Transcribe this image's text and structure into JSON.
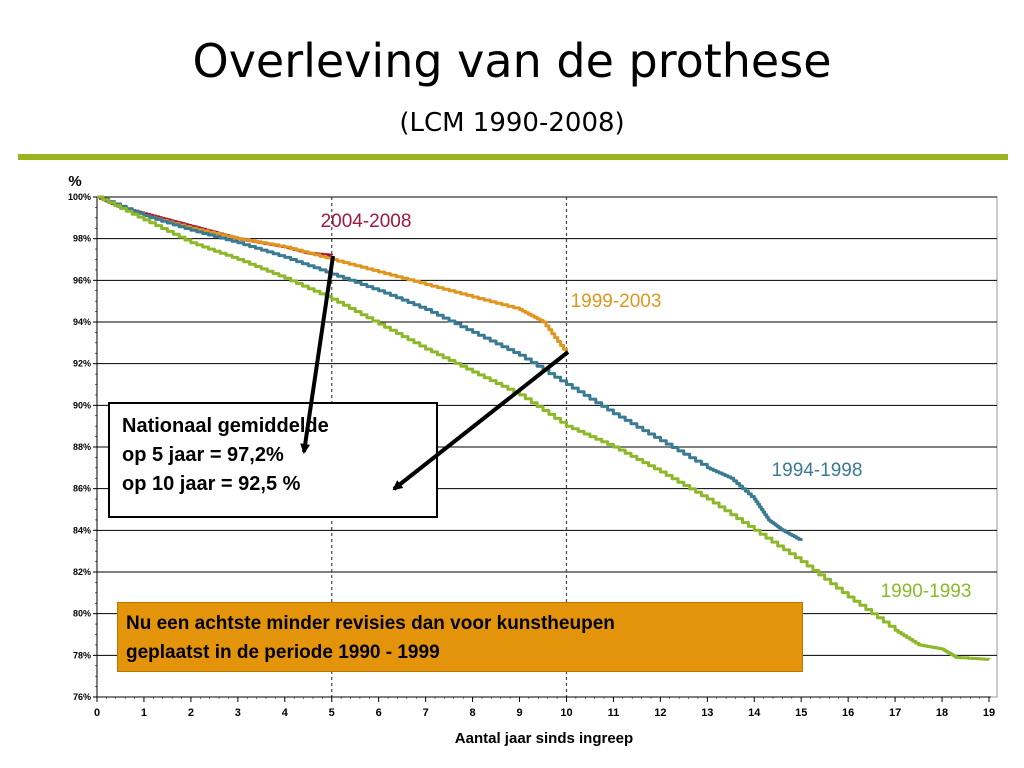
{
  "slide": {
    "title": "Overleving van de prothese",
    "subtitle": "(LCM 1990-2008)",
    "accent_color": "#9ab41e"
  },
  "annotation": {
    "line1": "Nationaal gemiddelde",
    "line2": "op 5 jaar = 97,2%",
    "line3": "op 10 jaar = 92,5 %"
  },
  "callout": {
    "line1": "Nu een achtste minder revisies dan voor kunstheupen",
    "line2": "geplaatst in de periode 1990 - 1999",
    "color": "#e3940a"
  },
  "chart_data": {
    "type": "line",
    "ylabel": "%",
    "xlabel": "Aantal jaar sinds ingreep",
    "xlim": [
      0,
      19
    ],
    "ylim": [
      76,
      100
    ],
    "x_ticks": [
      "0",
      "1",
      "2",
      "3",
      "4",
      "5",
      "6",
      "7",
      "8",
      "9",
      "10",
      "11",
      "12",
      "13",
      "14",
      "15",
      "16",
      "17",
      "18",
      "19"
    ],
    "y_ticks": [
      "76%",
      "78%",
      "80%",
      "82%",
      "84%",
      "86%",
      "88%",
      "90%",
      "92%",
      "94%",
      "96%",
      "98%",
      "100%"
    ],
    "grid": true,
    "reference_lines_x": [
      5,
      10
    ],
    "series": [
      {
        "name": "2004-2008",
        "color": "#a0183a",
        "x": [
          0,
          0.5,
          1,
          1.5,
          2,
          2.5,
          3,
          3.5,
          4,
          4.5,
          5
        ],
        "y": [
          100,
          99.5,
          99.2,
          98.9,
          98.6,
          98.3,
          98.0,
          97.8,
          97.6,
          97.3,
          97.2
        ]
      },
      {
        "name": "1999-2003",
        "color": "#e0961e",
        "x": [
          0,
          1,
          2,
          3,
          4,
          5,
          6,
          7,
          8,
          9,
          9.5,
          10
        ],
        "y": [
          100,
          99.1,
          98.5,
          98.0,
          97.6,
          97.0,
          96.4,
          95.8,
          95.2,
          94.6,
          94.0,
          92.5
        ]
      },
      {
        "name": "1994-1998",
        "color": "#3a7a92",
        "x": [
          0,
          1,
          2,
          3,
          4,
          5,
          6,
          7,
          8,
          9,
          10,
          11,
          12,
          13,
          13.5,
          14,
          14.3,
          14.6,
          15
        ],
        "y": [
          100,
          99.1,
          98.4,
          97.8,
          97.1,
          96.3,
          95.5,
          94.6,
          93.5,
          92.4,
          91.0,
          89.6,
          88.3,
          87.0,
          86.5,
          85.5,
          84.5,
          84.0,
          83.5
        ]
      },
      {
        "name": "1990-1993",
        "color": "#8cb82a",
        "x": [
          0,
          1,
          2,
          3,
          4,
          5,
          6,
          7,
          8,
          9,
          10,
          11,
          12,
          13,
          14,
          15,
          16,
          17,
          17.5,
          18,
          18.3,
          19
        ],
        "y": [
          100,
          98.9,
          97.8,
          97.0,
          96.1,
          95.1,
          93.9,
          92.7,
          91.6,
          90.5,
          89.0,
          88.0,
          86.8,
          85.5,
          84.0,
          82.5,
          80.8,
          79.2,
          78.5,
          78.3,
          77.9,
          77.8
        ]
      }
    ]
  }
}
